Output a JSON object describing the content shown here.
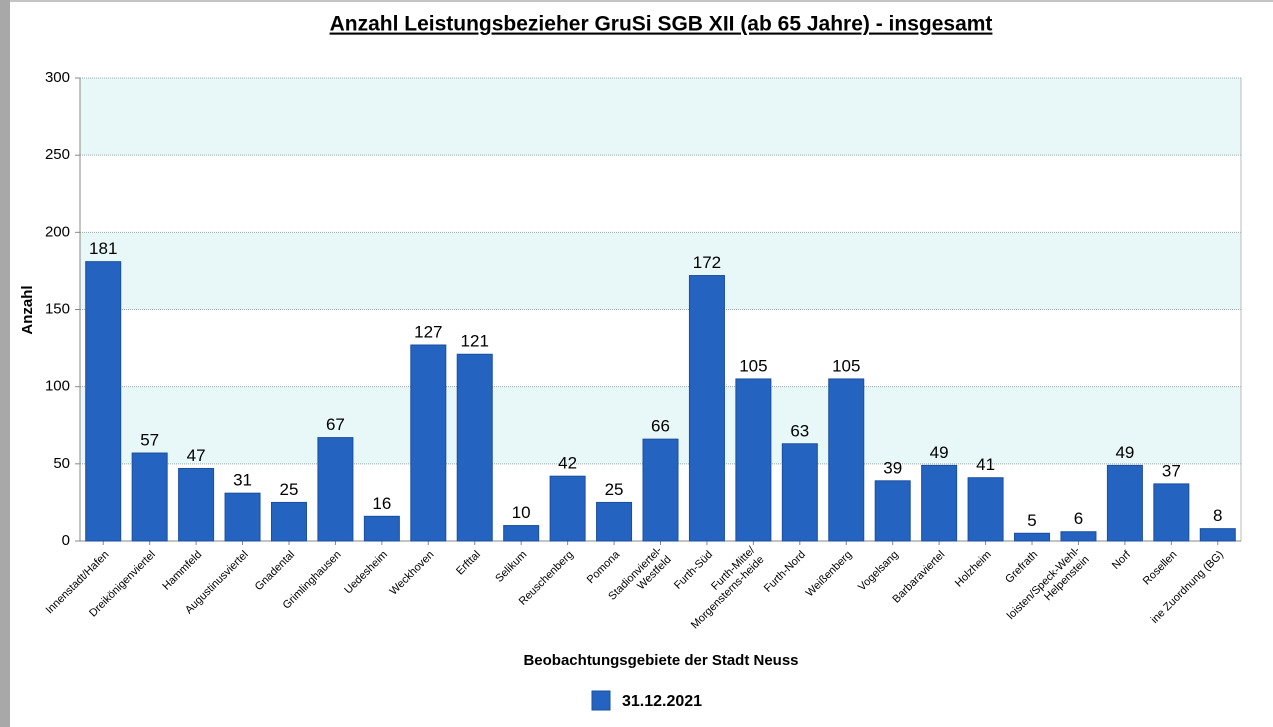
{
  "chart_data": {
    "type": "bar",
    "title": "Anzahl Leistungsbezieher GruSi SGB XII (ab 65 Jahre) - insgesamt",
    "x_label": "Beobachtungsgebiete der Stadt Neuss",
    "y_label": "Anzahl",
    "categories": [
      "Innenstadt/Hafen",
      "Dreikönigenviertel",
      "Hammfeld",
      "Augustinusviertel",
      "Gnadental",
      "Grimlinghausen",
      "Uedesheim",
      "Weckhoven",
      "Erfttal",
      "Selikum",
      "Reuschenberg",
      "Pomona",
      "Stadionviertel-\nWestfeld",
      "Furth-Süd",
      "Furth-Mitte/\nMorgensterns-heide",
      "Furth-Nord",
      "Weißenberg",
      "Vogelsang",
      "Barbaraviertel",
      "Holzheim",
      "Grefrath",
      "loisten/Speck-Wehl-\nHelpenstein",
      "Norf",
      "Rosellen",
      "ine Zuordnung (BG)"
    ],
    "series": [
      {
        "name": "31.12.2021",
        "color": "#2563c0",
        "values": [
          181,
          57,
          47,
          31,
          25,
          67,
          16,
          127,
          121,
          10,
          42,
          25,
          66,
          172,
          105,
          63,
          105,
          39,
          49,
          41,
          5,
          6,
          49,
          37,
          8
        ]
      }
    ],
    "ylim": [
      0,
      300
    ],
    "yticks": [
      0,
      50,
      100,
      150,
      200,
      250,
      300
    ],
    "grid": true
  }
}
